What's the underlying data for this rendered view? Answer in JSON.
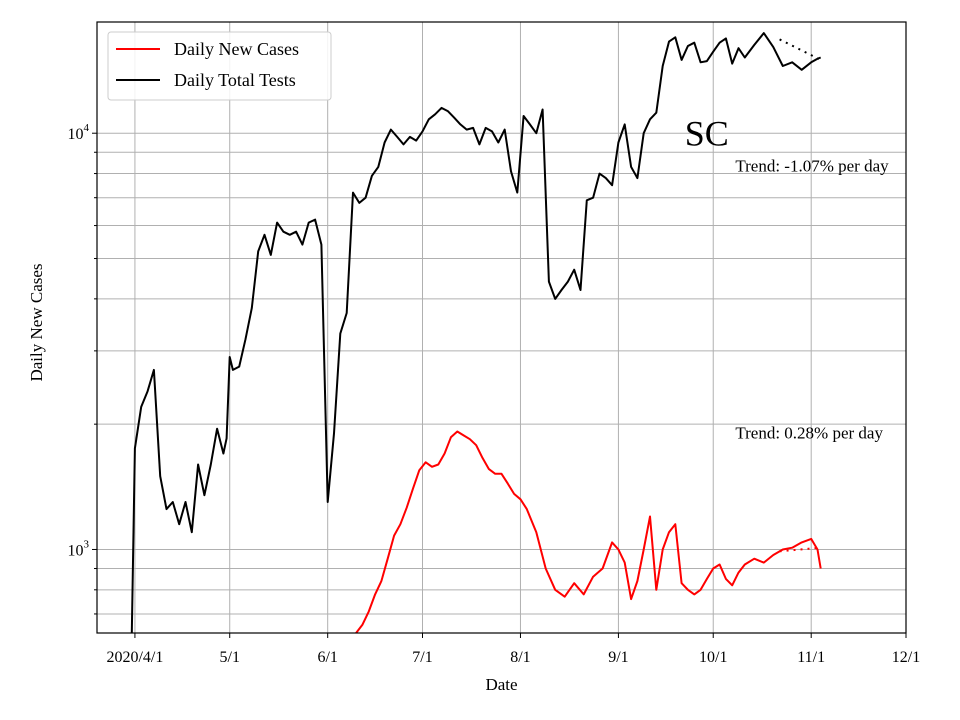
{
  "chart_data": {
    "type": "line",
    "title": "",
    "state_label": "SC",
    "xlabel": "Date",
    "ylabel": "Daily New Cases",
    "x_scale": "date",
    "y_scale": "log",
    "xlim": [
      "2020-03-20",
      "2020-12-01"
    ],
    "ylim": [
      630,
      18500
    ],
    "grid": true,
    "legend_placement": "top-left",
    "x_ticks": [
      {
        "date": "2020-04-01",
        "label": "2020/4/1"
      },
      {
        "date": "2020-05-01",
        "label": "5/1"
      },
      {
        "date": "2020-06-01",
        "label": "6/1"
      },
      {
        "date": "2020-07-01",
        "label": "7/1"
      },
      {
        "date": "2020-08-01",
        "label": "8/1"
      },
      {
        "date": "2020-09-01",
        "label": "9/1"
      },
      {
        "date": "2020-10-01",
        "label": "10/1"
      },
      {
        "date": "2020-11-01",
        "label": "11/1"
      },
      {
        "date": "2020-12-01",
        "label": "12/1"
      }
    ],
    "y_major_ticks": [
      {
        "value": 1000,
        "base": "10",
        "exp": "3"
      },
      {
        "value": 10000,
        "base": "10",
        "exp": "4"
      }
    ],
    "y_minor_ticks": [
      700,
      800,
      900,
      2000,
      3000,
      4000,
      5000,
      6000,
      7000,
      8000,
      9000
    ],
    "annotations": [
      {
        "text": "Trend: -1.07% per day",
        "x": "2020-10-08",
        "y": 8100
      },
      {
        "text": "Trend: 0.28% per day",
        "x": "2020-10-08",
        "y": 1850
      }
    ],
    "series": [
      {
        "name": "Daily New Cases",
        "color": "#ff0000",
        "x": [
          "2020-06-10",
          "2020-06-12",
          "2020-06-14",
          "2020-06-16",
          "2020-06-18",
          "2020-06-20",
          "2020-06-22",
          "2020-06-24",
          "2020-06-26",
          "2020-06-28",
          "2020-06-30",
          "2020-07-02",
          "2020-07-04",
          "2020-07-06",
          "2020-07-08",
          "2020-07-10",
          "2020-07-12",
          "2020-07-14",
          "2020-07-16",
          "2020-07-18",
          "2020-07-20",
          "2020-07-22",
          "2020-07-24",
          "2020-07-26",
          "2020-07-28",
          "2020-07-30",
          "2020-08-01",
          "2020-08-03",
          "2020-08-06",
          "2020-08-09",
          "2020-08-12",
          "2020-08-15",
          "2020-08-18",
          "2020-08-21",
          "2020-08-24",
          "2020-08-27",
          "2020-08-30",
          "2020-09-01",
          "2020-09-03",
          "2020-09-05",
          "2020-09-07",
          "2020-09-09",
          "2020-09-11",
          "2020-09-13",
          "2020-09-15",
          "2020-09-17",
          "2020-09-19",
          "2020-09-21",
          "2020-09-23",
          "2020-09-25",
          "2020-09-27",
          "2020-09-29",
          "2020-10-01",
          "2020-10-03",
          "2020-10-05",
          "2020-10-07",
          "2020-10-09",
          "2020-10-11",
          "2020-10-14",
          "2020-10-17",
          "2020-10-20",
          "2020-10-23",
          "2020-10-26",
          "2020-10-29",
          "2020-11-01",
          "2020-11-03",
          "2020-11-04"
        ],
        "y": [
          630,
          660,
          710,
          780,
          840,
          950,
          1080,
          1150,
          1260,
          1400,
          1550,
          1620,
          1580,
          1600,
          1700,
          1860,
          1920,
          1880,
          1840,
          1780,
          1660,
          1560,
          1520,
          1520,
          1440,
          1360,
          1320,
          1250,
          1100,
          900,
          800,
          770,
          830,
          780,
          860,
          900,
          1040,
          1000,
          930,
          760,
          840,
          1000,
          1200,
          800,
          1000,
          1100,
          1150,
          830,
          800,
          780,
          800,
          850,
          900,
          920,
          850,
          820,
          880,
          920,
          950,
          930,
          970,
          1000,
          1010,
          1040,
          1060,
          1000,
          900
        ]
      },
      {
        "name": "Daily Total Tests",
        "color": "#000000",
        "x": [
          "2020-03-31",
          "2020-04-01",
          "2020-04-03",
          "2020-04-05",
          "2020-04-07",
          "2020-04-09",
          "2020-04-11",
          "2020-04-13",
          "2020-04-15",
          "2020-04-17",
          "2020-04-19",
          "2020-04-21",
          "2020-04-23",
          "2020-04-25",
          "2020-04-27",
          "2020-04-29",
          "2020-04-30",
          "2020-05-01",
          "2020-05-02",
          "2020-05-04",
          "2020-05-06",
          "2020-05-08",
          "2020-05-10",
          "2020-05-12",
          "2020-05-14",
          "2020-05-16",
          "2020-05-18",
          "2020-05-20",
          "2020-05-22",
          "2020-05-24",
          "2020-05-26",
          "2020-05-28",
          "2020-05-30",
          "2020-06-01",
          "2020-06-03",
          "2020-06-05",
          "2020-06-07",
          "2020-06-09",
          "2020-06-11",
          "2020-06-13",
          "2020-06-15",
          "2020-06-17",
          "2020-06-19",
          "2020-06-21",
          "2020-06-23",
          "2020-06-25",
          "2020-06-27",
          "2020-06-29",
          "2020-07-01",
          "2020-07-03",
          "2020-07-05",
          "2020-07-07",
          "2020-07-09",
          "2020-07-11",
          "2020-07-13",
          "2020-07-15",
          "2020-07-17",
          "2020-07-19",
          "2020-07-21",
          "2020-07-23",
          "2020-07-25",
          "2020-07-27",
          "2020-07-29",
          "2020-07-31",
          "2020-08-02",
          "2020-08-04",
          "2020-08-06",
          "2020-08-08",
          "2020-08-10",
          "2020-08-12",
          "2020-08-14",
          "2020-08-16",
          "2020-08-18",
          "2020-08-20",
          "2020-08-22",
          "2020-08-24",
          "2020-08-26",
          "2020-08-28",
          "2020-08-30",
          "2020-09-01",
          "2020-09-03",
          "2020-09-05",
          "2020-09-07",
          "2020-09-09",
          "2020-09-11",
          "2020-09-13",
          "2020-09-15",
          "2020-09-17",
          "2020-09-19",
          "2020-09-21",
          "2020-09-23",
          "2020-09-25",
          "2020-09-27",
          "2020-09-29",
          "2020-10-01",
          "2020-10-03",
          "2020-10-05",
          "2020-10-07",
          "2020-10-09",
          "2020-10-11",
          "2020-10-14",
          "2020-10-17",
          "2020-10-20",
          "2020-10-23",
          "2020-10-26",
          "2020-10-29",
          "2020-11-01",
          "2020-11-03",
          "2020-11-04"
        ],
        "y": [
          630,
          1750,
          2200,
          2400,
          2700,
          1500,
          1250,
          1300,
          1150,
          1300,
          1100,
          1600,
          1350,
          1600,
          1950,
          1700,
          1850,
          2900,
          2700,
          2750,
          3200,
          3800,
          5200,
          5700,
          5100,
          6100,
          5800,
          5700,
          5800,
          5400,
          6100,
          6200,
          5400,
          1300,
          1900,
          3300,
          3700,
          7200,
          6800,
          7000,
          7900,
          8300,
          9500,
          10200,
          9800,
          9400,
          9800,
          9600,
          10100,
          10800,
          11100,
          11500,
          11300,
          10900,
          10500,
          10200,
          10300,
          9400,
          10300,
          10100,
          9500,
          10200,
          8100,
          7200,
          11000,
          10500,
          10000,
          11400,
          4400,
          4000,
          4200,
          4400,
          4700,
          4200,
          6900,
          7000,
          8000,
          7800,
          7500,
          9500,
          10500,
          8300,
          7800,
          10000,
          10800,
          11200,
          14500,
          16600,
          17000,
          15000,
          16200,
          16500,
          14800,
          14900,
          15700,
          16500,
          16900,
          14700,
          16000,
          15200,
          16300,
          17400,
          16100,
          14500,
          14800,
          14200,
          14800,
          15100,
          15200
        ]
      }
    ],
    "trend_lines": [
      {
        "series": "Daily New Cases",
        "color": "#ff0000",
        "x": [
          "2020-10-22",
          "2020-11-04"
        ],
        "y": [
          990,
          1010
        ]
      },
      {
        "series": "Daily Total Tests",
        "color": "#000000",
        "x": [
          "2020-10-22",
          "2020-11-04"
        ],
        "y": [
          16800,
          15000
        ]
      }
    ]
  }
}
